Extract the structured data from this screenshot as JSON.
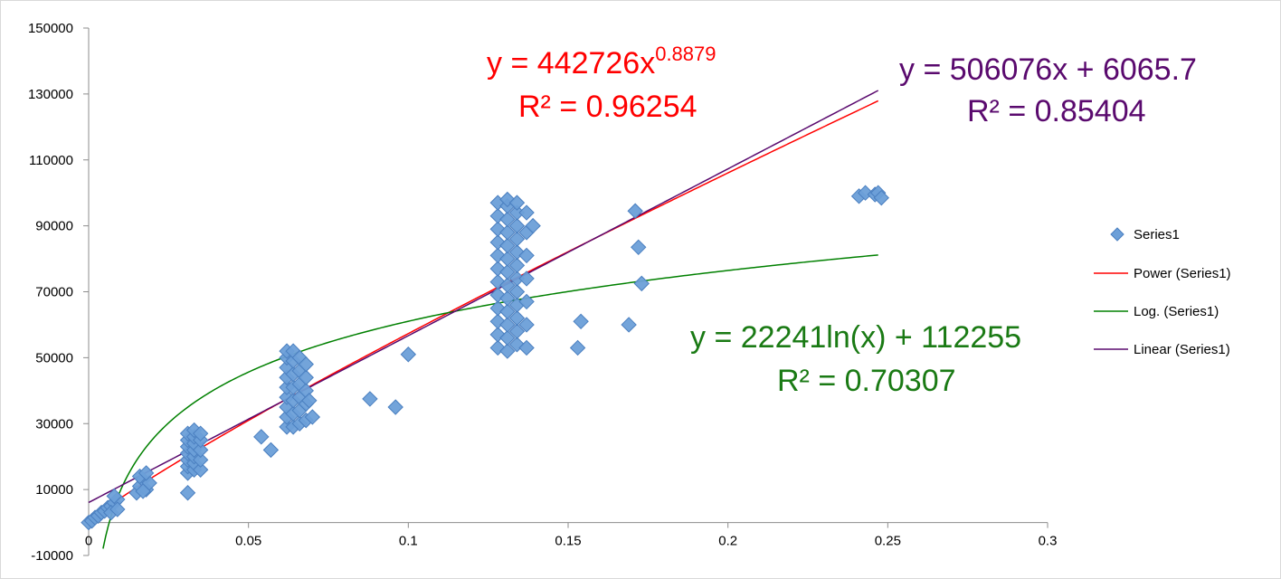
{
  "chart_data": {
    "type": "scatter",
    "xlim": [
      0,
      0.3
    ],
    "ylim": [
      -10000,
      150000
    ],
    "x_ticks": [
      0,
      0.05,
      0.1,
      0.15,
      0.2,
      0.25,
      0.3
    ],
    "x_tick_labels": [
      "0",
      "0.05",
      "0.1",
      "0.15",
      "0.2",
      "0.25",
      "0.3"
    ],
    "y_ticks": [
      -10000,
      10000,
      30000,
      50000,
      70000,
      90000,
      110000,
      130000,
      150000
    ],
    "y_tick_labels": [
      "-10000",
      "10000",
      "30000",
      "50000",
      "70000",
      "90000",
      "110000",
      "130000",
      "150000"
    ],
    "grid": false,
    "legend_position": "right",
    "series": [
      {
        "name": "Series1",
        "color": "#6c9fd8",
        "marker": "diamond",
        "points": [
          [
            0,
            0
          ],
          [
            0.001,
            500
          ],
          [
            0.002,
            1500
          ],
          [
            0.003,
            2000
          ],
          [
            0.004,
            3000
          ],
          [
            0.005,
            3500
          ],
          [
            0.006,
            4500
          ],
          [
            0.007,
            5000
          ],
          [
            0.008,
            6000
          ],
          [
            0.009,
            7000
          ],
          [
            0.007,
            3000
          ],
          [
            0.008,
            8000
          ],
          [
            0.009,
            4000
          ],
          [
            0.015,
            9000
          ],
          [
            0.016,
            11000
          ],
          [
            0.017,
            13000
          ],
          [
            0.018,
            10000
          ],
          [
            0.016,
            14000
          ],
          [
            0.019,
            12000
          ],
          [
            0.018,
            15000
          ],
          [
            0.017,
            9500
          ],
          [
            0.031,
            9000
          ],
          [
            0.031,
            15000
          ],
          [
            0.031,
            17000
          ],
          [
            0.031,
            19000
          ],
          [
            0.031,
            21000
          ],
          [
            0.031,
            23000
          ],
          [
            0.031,
            25000
          ],
          [
            0.031,
            27000
          ],
          [
            0.033,
            16000
          ],
          [
            0.033,
            18000
          ],
          [
            0.033,
            20000
          ],
          [
            0.033,
            22000
          ],
          [
            0.033,
            24000
          ],
          [
            0.033,
            26000
          ],
          [
            0.033,
            28000
          ],
          [
            0.035,
            16000
          ],
          [
            0.035,
            19000
          ],
          [
            0.035,
            22000
          ],
          [
            0.035,
            25000
          ],
          [
            0.035,
            27000
          ],
          [
            0.054,
            26000
          ],
          [
            0.057,
            22000
          ],
          [
            0.062,
            29000
          ],
          [
            0.062,
            32000
          ],
          [
            0.062,
            35000
          ],
          [
            0.062,
            38000
          ],
          [
            0.062,
            41000
          ],
          [
            0.062,
            44000
          ],
          [
            0.062,
            47000
          ],
          [
            0.062,
            50000
          ],
          [
            0.062,
            52000
          ],
          [
            0.064,
            29000
          ],
          [
            0.064,
            33000
          ],
          [
            0.064,
            37000
          ],
          [
            0.064,
            41000
          ],
          [
            0.064,
            45000
          ],
          [
            0.064,
            49000
          ],
          [
            0.064,
            52000
          ],
          [
            0.066,
            30000
          ],
          [
            0.066,
            34000
          ],
          [
            0.066,
            38000
          ],
          [
            0.066,
            42000
          ],
          [
            0.066,
            46000
          ],
          [
            0.066,
            50000
          ],
          [
            0.068,
            31000
          ],
          [
            0.068,
            36000
          ],
          [
            0.068,
            40000
          ],
          [
            0.068,
            44000
          ],
          [
            0.068,
            48000
          ],
          [
            0.07,
            32000
          ],
          [
            0.069,
            37000
          ],
          [
            0.088,
            37500
          ],
          [
            0.096,
            35000
          ],
          [
            0.1,
            51000
          ],
          [
            0.128,
            53000
          ],
          [
            0.128,
            57000
          ],
          [
            0.128,
            61000
          ],
          [
            0.128,
            65000
          ],
          [
            0.128,
            69000
          ],
          [
            0.128,
            73000
          ],
          [
            0.128,
            77000
          ],
          [
            0.128,
            81000
          ],
          [
            0.128,
            85000
          ],
          [
            0.128,
            89000
          ],
          [
            0.128,
            93000
          ],
          [
            0.128,
            97000
          ],
          [
            0.131,
            52000
          ],
          [
            0.131,
            56000
          ],
          [
            0.131,
            60000
          ],
          [
            0.131,
            64000
          ],
          [
            0.131,
            68000
          ],
          [
            0.131,
            72000
          ],
          [
            0.131,
            76000
          ],
          [
            0.131,
            80000
          ],
          [
            0.131,
            84000
          ],
          [
            0.131,
            88000
          ],
          [
            0.131,
            92000
          ],
          [
            0.131,
            96000
          ],
          [
            0.131,
            98000
          ],
          [
            0.134,
            54000
          ],
          [
            0.134,
            58000
          ],
          [
            0.134,
            62000
          ],
          [
            0.134,
            66000
          ],
          [
            0.134,
            70000
          ],
          [
            0.134,
            74000
          ],
          [
            0.134,
            78000
          ],
          [
            0.134,
            82000
          ],
          [
            0.134,
            86000
          ],
          [
            0.134,
            90000
          ],
          [
            0.134,
            94000
          ],
          [
            0.134,
            97000
          ],
          [
            0.137,
            53000
          ],
          [
            0.137,
            60000
          ],
          [
            0.137,
            67000
          ],
          [
            0.137,
            74000
          ],
          [
            0.137,
            81000
          ],
          [
            0.137,
            88000
          ],
          [
            0.137,
            94000
          ],
          [
            0.139,
            90000
          ],
          [
            0.153,
            53000
          ],
          [
            0.154,
            61000
          ],
          [
            0.169,
            60000
          ],
          [
            0.171,
            94500
          ],
          [
            0.172,
            83500
          ],
          [
            0.173,
            72500
          ],
          [
            0.241,
            99000
          ],
          [
            0.243,
            100000
          ],
          [
            0.246,
            99500
          ],
          [
            0.247,
            100000
          ],
          [
            0.248,
            98500
          ]
        ]
      },
      {
        "name": "Power (Series1)",
        "color": "#ff0000",
        "kind": "power",
        "a": 442726,
        "b": 0.8879,
        "x_range": [
          0.0005,
          0.247
        ]
      },
      {
        "name": "Log. (Series1)",
        "color": "#008000",
        "kind": "log",
        "a": 22241,
        "b": 112255,
        "x_range": [
          0.0045,
          0.247
        ]
      },
      {
        "name": "Linear (Series1)",
        "color": "#5a0a6e",
        "kind": "linear",
        "a": 506076,
        "b": 6065.7,
        "x_range": [
          0,
          0.247
        ]
      }
    ],
    "annotations": [
      {
        "id": "power",
        "color": "#ff0000",
        "line1_base": "y = 442726x",
        "line1_sup": "0.8879",
        "line2": "R² = 0.96254"
      },
      {
        "id": "linear",
        "color": "#5a0a6e",
        "line1": "y = 506076x + 6065.7",
        "line2": "R² = 0.85404"
      },
      {
        "id": "log",
        "color": "#1a7a14",
        "line1": "y = 22241ln(x) + 112255",
        "line2": "R² = 0.70307"
      }
    ]
  }
}
